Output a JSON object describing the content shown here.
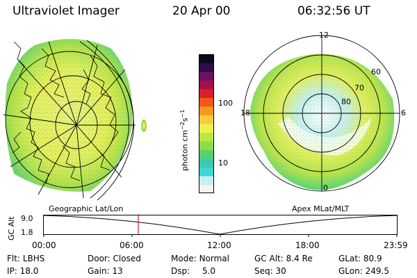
{
  "header": {
    "instrument": "Ultraviolet Imager",
    "date": "20 Apr 00",
    "time": "06:32:56 UT"
  },
  "geo_panel": {
    "label": "Geographic Lat/Lon",
    "colors": {
      "grid": "#000000",
      "emission_low": "#f4f466",
      "emission_mid": "#a6e040",
      "emission_edge": "#3cc9b0"
    }
  },
  "mlt_panel": {
    "label": "Apex MLat/MLT",
    "mlt_labels": {
      "top": "12",
      "left": "18",
      "right": "6",
      "bottom": "0"
    },
    "lat_labels": [
      "60",
      "70",
      "80"
    ]
  },
  "colorbar": {
    "unit": "photon cm",
    "unit_exp1": "−2",
    "unit_s": "s",
    "unit_exp2": "−1",
    "tick_100": "100",
    "tick_10": "10",
    "colors": [
      "#f4f4f4",
      "#c9eef0",
      "#3fd6d6",
      "#3cc9b0",
      "#57d272",
      "#8fdc4a",
      "#bde83c",
      "#eef04e",
      "#f6cc38",
      "#f49a22",
      "#f25a14",
      "#d8202a",
      "#a4104a",
      "#6a1460",
      "#2e0c4a",
      "#0a0a1e"
    ]
  },
  "altitude_plot": {
    "ylabel": "GC Alt",
    "y_top": "9.0",
    "y_bottom": "1.8",
    "x_ticks": [
      "00:00",
      "06:00",
      "12:00",
      "18:00",
      "23:59"
    ],
    "current_time_marker_color": "#cc2222"
  },
  "info": {
    "row1": [
      {
        "label": "Flt:",
        "value": "LBHS"
      },
      {
        "label": "Door:",
        "value": "Closed"
      },
      {
        "label": "Mode:",
        "value": "Normal"
      },
      {
        "label": "GC Alt:",
        "value": "8.4 Re"
      },
      {
        "label": "GLat:",
        "value": "80.9"
      }
    ],
    "row2": [
      {
        "label": "IP:",
        "value": "18.0"
      },
      {
        "label": "Gain:",
        "value": "13"
      },
      {
        "label": "Dsp:",
        "value": "5.0"
      },
      {
        "label": "Seq:",
        "value": "30"
      },
      {
        "label": "GLon:",
        "value": "249.5"
      }
    ]
  }
}
